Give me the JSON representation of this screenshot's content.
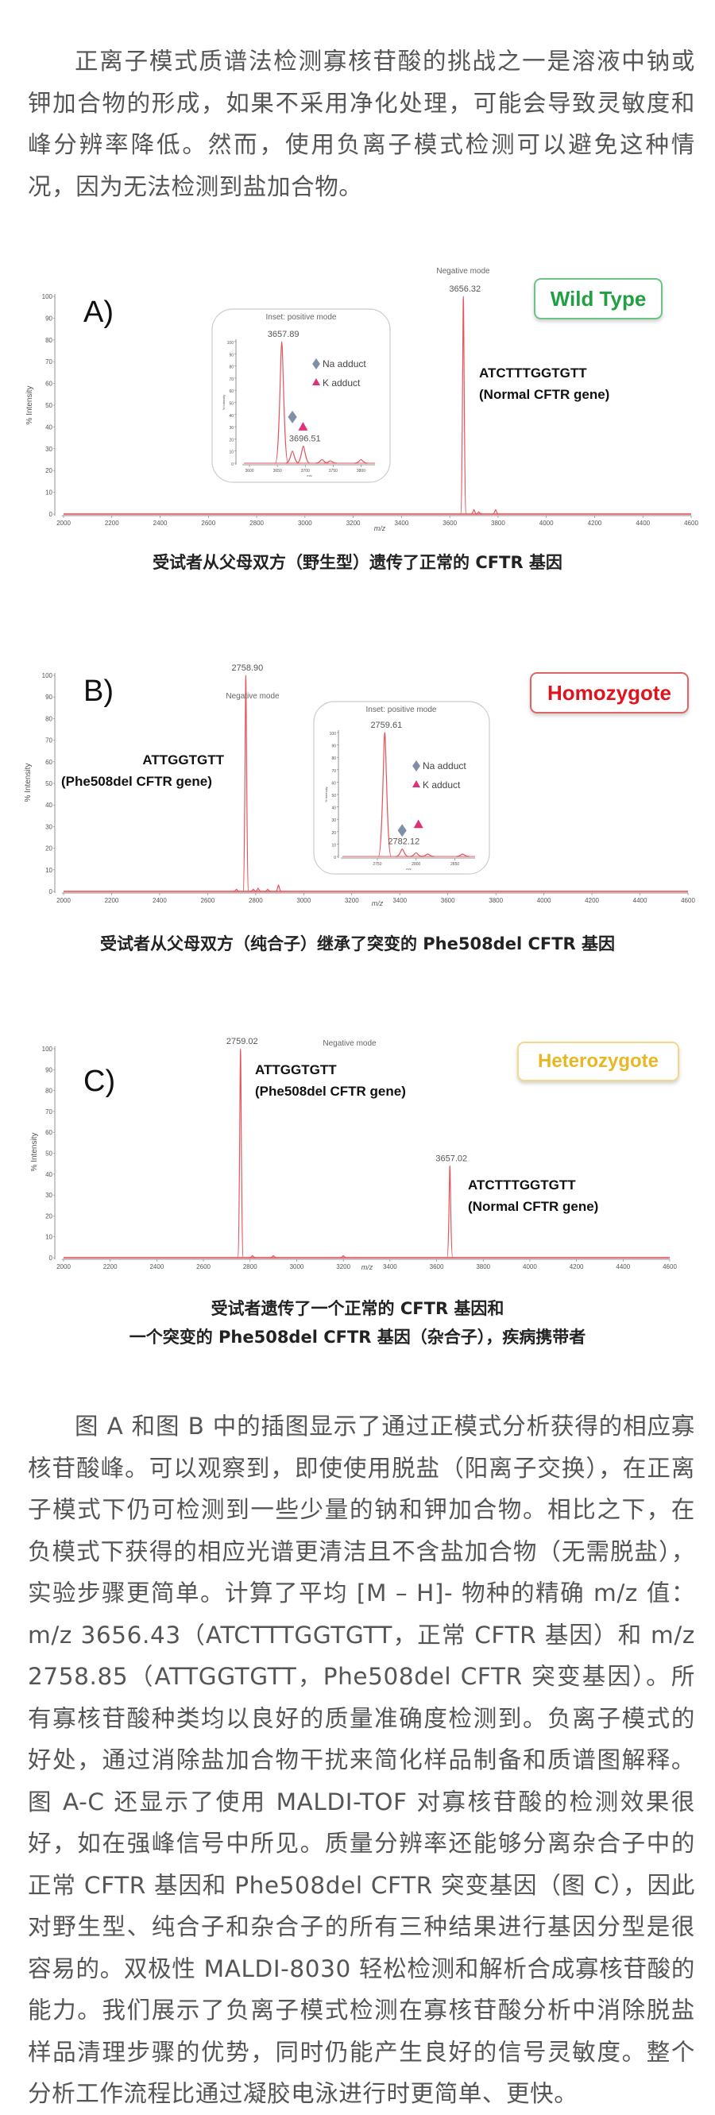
{
  "article": {
    "intro": "正离子模式质谱法检测寡核苷酸的挑战之一是溶液中钠或钾加合物的形成，如果不采用净化处理，可能会导致灵敏度和峰分辨率降低。然而，使用负离子模式检测可以避免这种情况，因为无法检测到盐加合物。",
    "discussion": "图 A 和图 B 中的插图显示了通过正模式分析获得的相应寡核苷酸峰。可以观察到，即使使用脱盐（阳离子交换），在正离子模式下仍可检测到一些少量的钠和钾加合物。相比之下，在负模式下获得的相应光谱更清洁且不含盐加合物（无需脱盐），实验步骤更简单。计算了平均 [M – H]- 物种的精确 m/z 值：m/z 3656.43（ATCTTTGGTGTT，正常 CFTR 基因）和 m/z 2758.85（ATTGGTGTT，Phe508del CFTR 突变基因）。所有寡核苷酸种类均以良好的质量准确度检测到。负离子模式的好处，通过消除盐加合物干扰来简化样品制备和质谱图解释。图 A-C 还显示了使用 MALDI-TOF 对寡核苷酸的检测效果很好，如在强峰信号中所见。质量分辨率还能够分离杂合子中的正常 CFTR 基因和 Phe508del CFTR 突变基因（图 C），因此对野生型、纯合子和杂合子的所有三种结果进行基因分型是很容易的。双极性 MALDI-8030 轻松检测和解析合成寡核苷酸的能力。我们展示了负离子模式检测在寡核苷酸分析中消除脱盐样品清理步骤的优势，同时仍能产生良好的信号灵敏度。整个分析工作流程比通过凝胶电泳进行时更简单、更快。"
  },
  "colors": {
    "spectrum": "#e4555c",
    "text": "#555555",
    "na_marker": "#7f8fa8",
    "k_marker": "#e0307a"
  },
  "chart_data": [
    {
      "type": "line",
      "panel": "A)",
      "mode_label": "Negative mode",
      "badge": "Wild Type",
      "badge_color": "#21a043",
      "xlabel": "m/z",
      "ylabel": "% Intensity",
      "xlim": [
        2000,
        4600
      ],
      "ylim": [
        0,
        100
      ],
      "xticks": [
        2000,
        2200,
        2400,
        2600,
        2800,
        3000,
        3200,
        3400,
        3600,
        3800,
        4000,
        4200,
        4400,
        4600
      ],
      "yticks": [
        0,
        10,
        20,
        30,
        40,
        50,
        60,
        70,
        80,
        90,
        100
      ],
      "peaks": [
        {
          "mz": 3656.32,
          "intensity": 100,
          "label": "3656.32"
        },
        {
          "mz": 3700,
          "intensity": 2
        },
        {
          "mz": 3720,
          "intensity": 1
        },
        {
          "mz": 3790,
          "intensity": 2
        }
      ],
      "annotations": [
        "ATCTTTGGTGTT",
        "(Normal CFTR gene)"
      ],
      "inset": {
        "title": "Inset: positive mode",
        "xlabel": "m/z",
        "ylabel": "% Intensity",
        "xlim": [
          3590,
          3825
        ],
        "ylim": [
          0,
          100
        ],
        "xticks": [
          3600,
          3650,
          3700,
          3750,
          3800
        ],
        "yticks": [
          0,
          10,
          20,
          30,
          40,
          50,
          60,
          70,
          80,
          90,
          100
        ],
        "peaks": [
          {
            "mz": 3657.89,
            "intensity": 100,
            "label": "3657.89"
          },
          {
            "mz": 3677,
            "intensity": 10
          },
          {
            "mz": 3696.51,
            "intensity": 14,
            "label": "3696.51"
          },
          {
            "mz": 3730,
            "intensity": 3
          },
          {
            "mz": 3745,
            "intensity": 2
          },
          {
            "mz": 3800,
            "intensity": 3
          }
        ],
        "markers": [
          {
            "type": "diamond",
            "mz": 3677,
            "intensity": 38
          },
          {
            "type": "triangle",
            "mz": 3696,
            "intensity": 30
          }
        ],
        "legend": [
          {
            "marker": "diamond",
            "label": "Na adduct"
          },
          {
            "marker": "triangle",
            "label": "K adduct"
          }
        ]
      },
      "caption": [
        "受试者从父母双方（野生型）遗传了正常的 CFTR 基因"
      ]
    },
    {
      "type": "line",
      "panel": "B)",
      "mode_label": "Negative mode",
      "badge": "Homozygote",
      "badge_color": "#e0141e",
      "xlabel": "m/z",
      "ylabel": "% Intensity",
      "xlim": [
        2000,
        4600
      ],
      "ylim": [
        0,
        100
      ],
      "xticks": [
        2000,
        2200,
        2400,
        2600,
        2800,
        3000,
        3200,
        3400,
        3600,
        3800,
        4000,
        4200,
        4400,
        4600
      ],
      "yticks": [
        0,
        10,
        20,
        30,
        40,
        50,
        60,
        70,
        80,
        90,
        100
      ],
      "peaks": [
        {
          "mz": 2720,
          "intensity": 1
        },
        {
          "mz": 2758.9,
          "intensity": 100,
          "label": "2758.90"
        },
        {
          "mz": 2790,
          "intensity": 1
        },
        {
          "mz": 2810,
          "intensity": 1.5
        },
        {
          "mz": 2850,
          "intensity": 1
        },
        {
          "mz": 2895,
          "intensity": 3
        }
      ],
      "annotations": [
        "ATTGGTGTT",
        "(Phe508del CFTR gene)"
      ],
      "inset": {
        "title": "Inset: positive mode",
        "xlabel": "m/z",
        "ylabel": "% Intensity",
        "xlim": [
          2705,
          2876
        ],
        "ylim": [
          0,
          100
        ],
        "xticks": [
          2750,
          2800,
          2850
        ],
        "yticks": [
          0,
          10,
          20,
          30,
          40,
          50,
          60,
          70,
          80,
          90,
          100
        ],
        "peaks": [
          {
            "mz": 2759.61,
            "intensity": 100,
            "label": "2759.61"
          },
          {
            "mz": 2782.12,
            "intensity": 6,
            "label": "2782.12"
          },
          {
            "mz": 2800,
            "intensity": 3
          },
          {
            "mz": 2815,
            "intensity": 2
          },
          {
            "mz": 2860,
            "intensity": 2
          }
        ],
        "markers": [
          {
            "type": "diamond",
            "mz": 2782,
            "intensity": 21
          },
          {
            "type": "triangle",
            "mz": 2803,
            "intensity": 26
          }
        ],
        "legend": [
          {
            "marker": "diamond",
            "label": "Na adduct"
          },
          {
            "marker": "triangle",
            "label": "K adduct"
          }
        ]
      },
      "caption": [
        "受试者从父母双方（纯合子）继承了突变的 Phe508del CFTR 基因"
      ]
    },
    {
      "type": "line",
      "panel": "C)",
      "mode_label": "Negative mode",
      "badge": "Heterozygote",
      "badge_color": "#e8b824",
      "xlabel": "m/z",
      "ylabel": "% Intensity",
      "xlim": [
        2000,
        4600
      ],
      "ylim": [
        0,
        100
      ],
      "xticks": [
        2000,
        2200,
        2400,
        2600,
        2800,
        3000,
        3200,
        3400,
        3600,
        3800,
        4000,
        4200,
        4400,
        4600
      ],
      "yticks": [
        0,
        10,
        20,
        30,
        40,
        50,
        60,
        70,
        80,
        90,
        100
      ],
      "peaks": [
        {
          "mz": 2759.02,
          "intensity": 100,
          "label": "2759.02"
        },
        {
          "mz": 2810,
          "intensity": 1
        },
        {
          "mz": 2900,
          "intensity": 1
        },
        {
          "mz": 3200,
          "intensity": 1
        },
        {
          "mz": 3657.02,
          "intensity": 44,
          "label": "3657.02"
        }
      ],
      "annotations": [
        "ATTGGTGTT",
        "(Phe508del CFTR gene)",
        "ATCTTTGGTGTT",
        "(Normal CFTR gene)"
      ],
      "caption": [
        "受试者遗传了一个正常的 CFTR 基因和",
        "一个突变的 Phe508del CFTR 基因（杂合子），疾病携带者"
      ]
    }
  ]
}
